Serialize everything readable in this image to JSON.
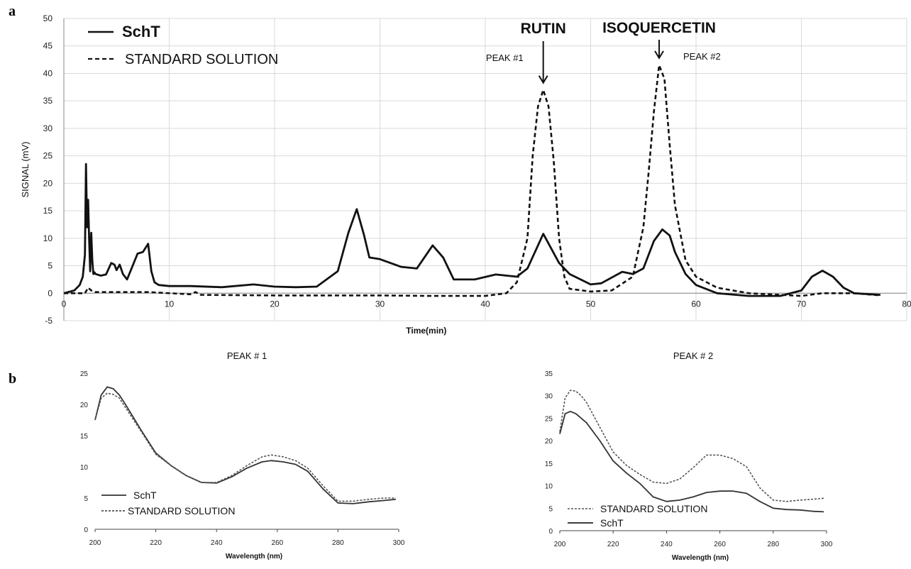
{
  "panels": {
    "a_letter": "a",
    "b_letter": "b"
  },
  "chart_data": [
    {
      "type": "line",
      "panel": "a",
      "title": "",
      "xlabel": "Time(min)",
      "ylabel": "SIGNAL (mV)",
      "xlim": [
        0,
        80
      ],
      "ylim": [
        -5,
        50
      ],
      "xticks": [
        0,
        10,
        20,
        30,
        40,
        50,
        60,
        70,
        80
      ],
      "yticks": [
        -5,
        0,
        5,
        10,
        15,
        20,
        25,
        30,
        35,
        40,
        45,
        50
      ],
      "grid": true,
      "legend": "top-left",
      "series": [
        {
          "name": "SchT",
          "style": "solid",
          "x": [
            0,
            1,
            1.5,
            1.8,
            2.0,
            2.1,
            2.2,
            2.3,
            2.4,
            2.5,
            2.6,
            2.7,
            2.8,
            2.9,
            3.0,
            3.5,
            4.0,
            4.5,
            4.8,
            5.0,
            5.3,
            5.6,
            6.0,
            7.0,
            7.5,
            8.0,
            8.3,
            8.6,
            9.0,
            10,
            12,
            15,
            18,
            20,
            22,
            24,
            26,
            27,
            27.8,
            28.5,
            29,
            30,
            32,
            33.5,
            35,
            36,
            37,
            39,
            41,
            43,
            44,
            45.5,
            47,
            48,
            50,
            51,
            53,
            54,
            55,
            56,
            56.8,
            57.5,
            58,
            59,
            60,
            62,
            65,
            68,
            70,
            71,
            72,
            73,
            74,
            75,
            77.5
          ],
          "y": [
            0,
            0.5,
            1.5,
            3,
            7,
            23.5,
            12,
            17,
            10,
            4,
            11,
            6,
            3.5,
            3.8,
            3.5,
            3.2,
            3.4,
            5.5,
            5.2,
            4.2,
            5.2,
            3.5,
            2.5,
            7.2,
            7.5,
            9,
            4,
            2,
            1.5,
            1.3,
            1.3,
            1.1,
            1.6,
            1.2,
            1.1,
            1.2,
            4,
            11,
            15.3,
            10.5,
            6.5,
            6.2,
            4.8,
            4.5,
            8.7,
            6.5,
            2.5,
            2.5,
            3.4,
            3,
            4.5,
            10.8,
            5.5,
            3.5,
            1.6,
            1.8,
            3.9,
            3.5,
            4.5,
            9.5,
            11.6,
            10.5,
            7.5,
            3.5,
            1.5,
            0,
            -0.5,
            -0.5,
            0.5,
            3,
            4.1,
            3,
            1,
            0,
            -0.3
          ]
        },
        {
          "name": "STANDARD SOLUTION",
          "style": "dashed",
          "x": [
            0,
            2.0,
            2.3,
            2.6,
            3.0,
            8,
            12,
            12.5,
            13,
            20,
            30,
            35,
            40,
            42,
            43,
            44,
            44.5,
            45,
            45.5,
            46,
            46.5,
            47,
            47.5,
            48,
            50,
            52,
            54,
            55,
            55.5,
            56,
            56.5,
            57,
            57.5,
            58,
            59,
            60,
            62,
            65,
            70,
            72,
            75,
            77.5
          ],
          "y": [
            0,
            0,
            1,
            0.5,
            0.2,
            0.2,
            -0.2,
            0.2,
            -0.3,
            -0.4,
            -0.4,
            -0.5,
            -0.5,
            0,
            2,
            10,
            25,
            34,
            37,
            34,
            24,
            10,
            3,
            0.8,
            0.3,
            0.5,
            3,
            12,
            22,
            33,
            41.5,
            39,
            27,
            16,
            6,
            3,
            1,
            0,
            -0.5,
            0,
            0,
            -0.4
          ]
        }
      ],
      "annotations": [
        {
          "text": "RUTIN",
          "x": 45.5,
          "y": 37
        },
        {
          "text": "PEAK #1",
          "x": 45.5,
          "y": 37
        },
        {
          "text": "ISOQUERCETIN",
          "x": 56.5,
          "y": 41.5
        },
        {
          "text": "PEAK #2",
          "x": 56.5,
          "y": 41.5
        }
      ]
    },
    {
      "type": "line",
      "panel": "b-left",
      "title": "PEAK # 1",
      "xlabel": "Wavelength (nm)",
      "ylabel": "",
      "xlim": [
        200,
        300
      ],
      "ylim": [
        0,
        25
      ],
      "xticks": [
        200,
        220,
        240,
        260,
        280,
        300
      ],
      "yticks": [
        0,
        5,
        10,
        15,
        20,
        25
      ],
      "grid": false,
      "legend": "bottom-left",
      "series": [
        {
          "name": "SchT",
          "style": "solid",
          "x": [
            200,
            202,
            204,
            206,
            208,
            210,
            215,
            220,
            225,
            230,
            235,
            240,
            245,
            250,
            255,
            258,
            262,
            266,
            270,
            275,
            280,
            285,
            290,
            295,
            299
          ],
          "y": [
            17.5,
            21.5,
            22.8,
            22.5,
            21.5,
            20,
            16,
            12.2,
            10.2,
            8.6,
            7.5,
            7.4,
            8.4,
            9.8,
            10.8,
            11,
            10.8,
            10.4,
            9.3,
            6.5,
            4.2,
            4.1,
            4.4,
            4.6,
            4.8
          ]
        },
        {
          "name": "STANDARD SOLUTION",
          "style": "dashed",
          "x": [
            200,
            202,
            204,
            206,
            208,
            210,
            215,
            220,
            225,
            230,
            235,
            240,
            245,
            250,
            255,
            258,
            262,
            266,
            270,
            275,
            280,
            285,
            290,
            295,
            299
          ],
          "y": [
            17.5,
            21,
            21.8,
            21.6,
            21,
            19.5,
            15.8,
            12,
            10.2,
            8.6,
            7.5,
            7.5,
            8.6,
            10.2,
            11.6,
            11.9,
            11.6,
            11,
            9.8,
            7,
            4.5,
            4.5,
            4.8,
            5,
            5
          ]
        }
      ]
    },
    {
      "type": "line",
      "panel": "b-right",
      "title": "PEAK # 2",
      "xlabel": "Wavelength (nm)",
      "ylabel": "",
      "xlim": [
        200,
        300
      ],
      "ylim": [
        0,
        35
      ],
      "xticks": [
        200,
        220,
        240,
        260,
        280,
        300
      ],
      "yticks": [
        0,
        5,
        10,
        15,
        20,
        25,
        30,
        35
      ],
      "grid": false,
      "legend": "bottom-left",
      "series": [
        {
          "name": "STANDARD SOLUTION",
          "style": "dashed",
          "x": [
            200,
            202,
            204,
            206,
            208,
            210,
            215,
            220,
            225,
            230,
            235,
            240,
            245,
            250,
            255,
            260,
            265,
            270,
            275,
            280,
            285,
            290,
            295,
            299
          ],
          "y": [
            22,
            29.5,
            31.2,
            31,
            30,
            28.5,
            23,
            17.5,
            14.5,
            12.5,
            10.8,
            10.5,
            11.5,
            14,
            16.8,
            16.8,
            16,
            14.2,
            9.5,
            6.8,
            6.5,
            6.8,
            7,
            7.2
          ]
        },
        {
          "name": "SchT",
          "style": "solid",
          "x": [
            200,
            202,
            204,
            206,
            208,
            210,
            215,
            220,
            225,
            230,
            235,
            240,
            245,
            250,
            255,
            260,
            265,
            270,
            275,
            280,
            285,
            290,
            295,
            299
          ],
          "y": [
            21.5,
            26,
            26.5,
            26,
            25,
            24,
            20,
            15.5,
            12.8,
            10.5,
            7.5,
            6.5,
            6.8,
            7.5,
            8.5,
            8.8,
            8.8,
            8.3,
            6.5,
            5,
            4.7,
            4.6,
            4.3,
            4.2
          ]
        }
      ]
    }
  ]
}
